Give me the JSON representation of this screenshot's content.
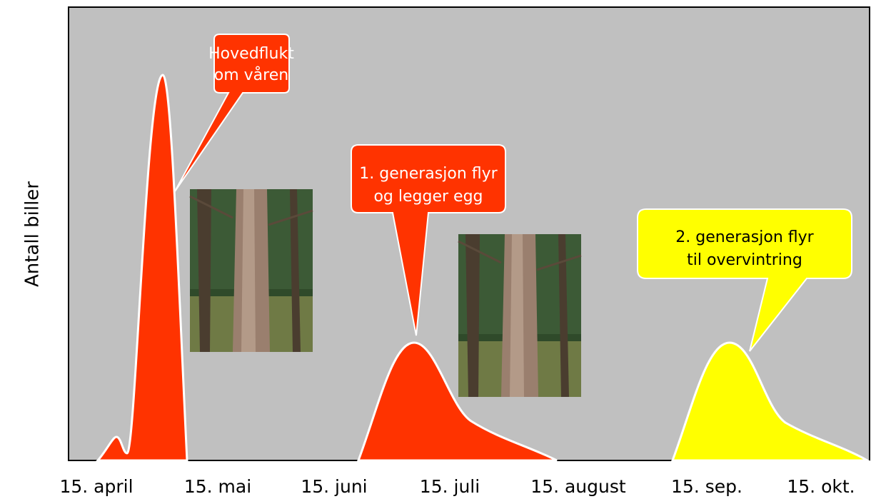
{
  "axis": {
    "y_label": "Antall biller",
    "x_labels": [
      "15. april",
      "15. mai",
      "15. juni",
      "15. juli",
      "15. august",
      "15. sep.",
      "15. okt."
    ]
  },
  "callouts": [
    {
      "lines": [
        "Hovedflukt",
        "om våren"
      ]
    },
    {
      "lines": [
        "1. generasjon flyr",
        "og legger egg"
      ]
    },
    {
      "lines": [
        "2. generasjon flyr",
        "til overvintring"
      ]
    }
  ]
}
